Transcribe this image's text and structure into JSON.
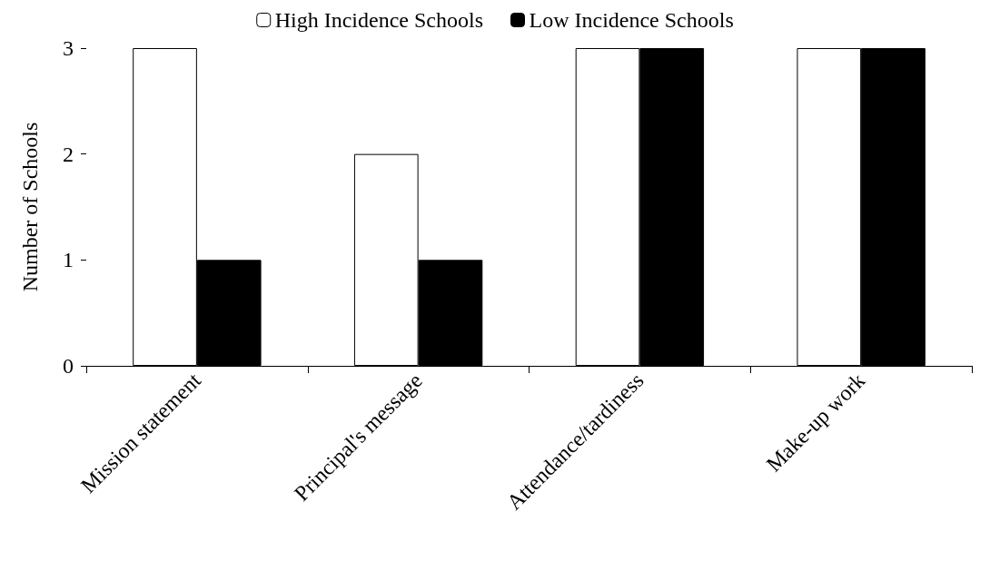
{
  "chart_data": {
    "type": "bar",
    "ylabel": "Number of Schools",
    "categories": [
      "Mission statement",
      "Principal's message",
      "Attendance/tardiness",
      "Make-up work"
    ],
    "series": [
      {
        "name": "High Incidence Schools",
        "color": "#ffffff",
        "values": [
          3,
          2,
          3,
          3
        ]
      },
      {
        "name": "Low Incidence Schools",
        "color": "#000000",
        "values": [
          1,
          1,
          3,
          3
        ]
      }
    ],
    "ylim": [
      0,
      3
    ],
    "yticks": [
      0,
      1,
      2,
      3
    ],
    "grid": false,
    "legend": "top"
  }
}
